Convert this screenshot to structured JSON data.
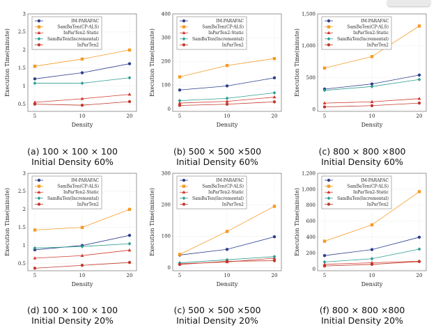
{
  "colors": {
    "series": [
      "#2c3e8c",
      "#f59a23",
      "#d03a2e",
      "#2a9d8f",
      "#c0392b"
    ],
    "axis": "#555555",
    "grid": "#c8c8c8"
  },
  "chart_data": [
    {
      "type": "line",
      "x": [
        "5",
        "10",
        "20"
      ],
      "xlabel": "Density",
      "ylabel": "Execution Time(minute)",
      "ylim": [
        0.3,
        3
      ],
      "yticks": [
        "0.5",
        "1",
        "1.5",
        "2",
        "2.5",
        "3"
      ],
      "ytick_values": [
        0.5,
        1,
        1.5,
        2,
        2.5,
        3
      ],
      "grid": true,
      "legend": "top-left",
      "series": [
        {
          "name": "IM-PARAFAC",
          "values": [
            1.2,
            1.37,
            1.62
          ]
        },
        {
          "name": "SamBaTen(CP-ALS)",
          "values": [
            1.55,
            1.75,
            2.0
          ]
        },
        {
          "name": "InParTen2-Static",
          "values": [
            0.55,
            0.65,
            0.77
          ]
        },
        {
          "name": "SamBaTen(Incremental)",
          "values": [
            1.08,
            1.08,
            1.23
          ]
        },
        {
          "name": "InParTen2",
          "values": [
            0.5,
            0.47,
            0.57
          ]
        }
      ],
      "caption": [
        "(a)  100 × 100 × 100",
        "Initial Density 60%"
      ]
    },
    {
      "type": "line",
      "x": [
        "5",
        "10",
        "20"
      ],
      "xlabel": "Density",
      "ylabel": "Execution Time(minute)",
      "ylim": [
        -10,
        400
      ],
      "yticks": [
        "0",
        "100",
        "200",
        "300",
        "400"
      ],
      "ytick_values": [
        0,
        100,
        200,
        300,
        400
      ],
      "grid": true,
      "legend": "top-left",
      "series": [
        {
          "name": "IM-PARAFAC",
          "values": [
            80,
            97,
            131
          ]
        },
        {
          "name": "SamBaTen(CP-ALS)",
          "values": [
            135,
            183,
            212
          ]
        },
        {
          "name": "InParTen2-Static",
          "values": [
            25,
            32,
            50
          ]
        },
        {
          "name": "SamBaTen(Incremental)",
          "values": [
            35,
            45,
            68
          ]
        },
        {
          "name": "InParTen2",
          "values": [
            15,
            20,
            30
          ]
        }
      ],
      "caption": [
        "(b)  500 × 500 ×500",
        "Initial Density 60%"
      ]
    },
    {
      "type": "line",
      "x": [
        "5",
        "10",
        "20"
      ],
      "xlabel": "Density",
      "ylabel": "Execution Time(minute)",
      "ylim": [
        -30,
        1500
      ],
      "yticks": [
        "0",
        "500",
        "1,000",
        "1,500"
      ],
      "ytick_values": [
        0,
        500,
        1000,
        1500
      ],
      "grid": true,
      "legend": "top-left",
      "series": [
        {
          "name": "IM-PARAFAC",
          "values": [
            320,
            400,
            540
          ]
        },
        {
          "name": "SamBaTen(CP-ALS)",
          "values": [
            650,
            830,
            1310
          ]
        },
        {
          "name": "InParTen2-Static",
          "values": [
            100,
            120,
            170
          ]
        },
        {
          "name": "SamBaTen(Incremental)",
          "values": [
            300,
            360,
            470
          ]
        },
        {
          "name": "InParTen2",
          "values": [
            40,
            60,
            100
          ]
        }
      ],
      "caption": [
        "(c)  800 × 800 ×800",
        "Initial Density 60%"
      ]
    },
    {
      "type": "line",
      "x": [
        "5",
        "10",
        "20"
      ],
      "xlabel": "Density",
      "ylabel": "Execution Time(minute)",
      "ylim": [
        0.3,
        3
      ],
      "yticks": [
        "0.5",
        "1",
        "1.5",
        "2",
        "2.5",
        "3"
      ],
      "ytick_values": [
        0.5,
        1,
        1.5,
        2,
        2.5,
        3
      ],
      "grid": true,
      "legend": "top-left",
      "series": [
        {
          "name": "IM-PARAFAC",
          "values": [
            0.88,
            1.0,
            1.28
          ]
        },
        {
          "name": "SamBaTen(CP-ALS)",
          "values": [
            1.43,
            1.5,
            2.0
          ]
        },
        {
          "name": "InParTen2-Static",
          "values": [
            0.65,
            0.72,
            0.87
          ]
        },
        {
          "name": "SamBaTen(Incremental)",
          "values": [
            0.93,
            0.97,
            1.05
          ]
        },
        {
          "name": "InParTen2",
          "values": [
            0.37,
            0.45,
            0.53
          ]
        }
      ],
      "caption": [
        "(d)  100 × 100 × 100",
        "Initial Density 20%"
      ]
    },
    {
      "type": "line",
      "x": [
        "5",
        "10",
        "20"
      ],
      "xlabel": "Density",
      "ylabel": "Execution Time(minute)",
      "ylim": [
        -10,
        300
      ],
      "yticks": [
        "0",
        "100",
        "200",
        "300"
      ],
      "ytick_values": [
        0,
        100,
        200,
        300
      ],
      "grid": true,
      "legend": "top-left",
      "series": [
        {
          "name": "IM-PARAFAC",
          "values": [
            40,
            58,
            98
          ]
        },
        {
          "name": "SamBaTen(CP-ALS)",
          "values": [
            42,
            115,
            195
          ]
        },
        {
          "name": "InParTen2-Static",
          "values": [
            12,
            18,
            30
          ]
        },
        {
          "name": "SamBaTen(Incremental)",
          "values": [
            15,
            25,
            35
          ]
        },
        {
          "name": "InParTen2",
          "values": [
            10,
            20,
            22
          ]
        }
      ],
      "caption": [
        "(c)  500 × 500 ×500",
        "Initial Density 20%"
      ]
    },
    {
      "type": "line",
      "x": [
        "5",
        "10",
        "20"
      ],
      "xlabel": "Density",
      "ylabel": "Execution Time(minute)",
      "ylim": [
        -20,
        1200
      ],
      "yticks": [
        "0",
        "200",
        "400",
        "600",
        "800",
        "1,000",
        "1,200"
      ],
      "ytick_values": [
        0,
        200,
        400,
        600,
        800,
        1000,
        1200
      ],
      "grid": true,
      "legend": "top-left",
      "series": [
        {
          "name": "IM-PARAFAC",
          "values": [
            170,
            245,
            400
          ]
        },
        {
          "name": "SamBaTen(CP-ALS)",
          "values": [
            350,
            555,
            970
          ]
        },
        {
          "name": "InParTen2-Static",
          "values": [
            60,
            80,
            100
          ]
        },
        {
          "name": "SamBaTen(Incremental)",
          "values": [
            90,
            130,
            250
          ]
        },
        {
          "name": "InParTen2",
          "values": [
            40,
            60,
            95
          ]
        }
      ],
      "caption": [
        "(f)  800 × 800 ×800",
        "Initial Density 20%"
      ]
    }
  ]
}
